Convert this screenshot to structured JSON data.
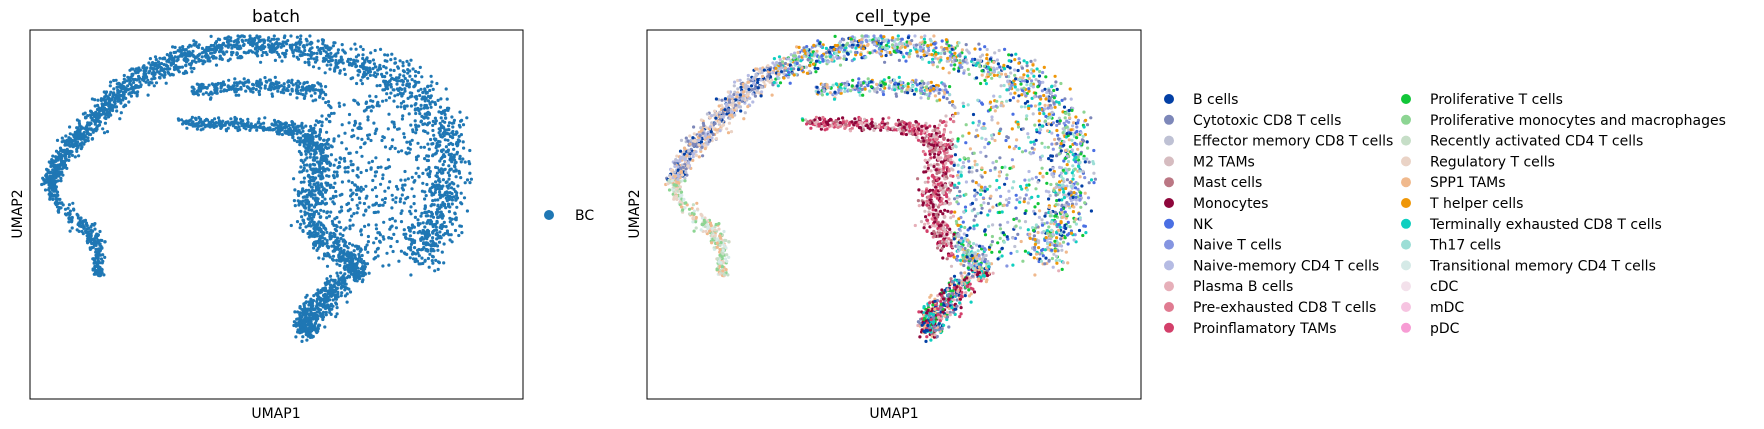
{
  "chart_data": [
    {
      "type": "scatter",
      "title": "batch",
      "xlabel": "UMAP1",
      "ylabel": "UMAP2",
      "grid": false,
      "ticks": "none",
      "legend_placement": "right",
      "series": [
        {
          "name": "BC",
          "color": "#1f77b4"
        }
      ]
    },
    {
      "type": "scatter",
      "title": "cell_type",
      "xlabel": "UMAP1",
      "ylabel": "UMAP2",
      "grid": false,
      "ticks": "none",
      "legend_placement": "right",
      "series": [
        {
          "name": "B cells",
          "color": "#023fa5"
        },
        {
          "name": "Cytotoxic CD8 T cells",
          "color": "#7d87b9"
        },
        {
          "name": "Effector memory CD8 T cells",
          "color": "#bec1d4"
        },
        {
          "name": "M2 TAMs",
          "color": "#d6bcc0"
        },
        {
          "name": "Mast cells",
          "color": "#bb7784"
        },
        {
          "name": "Monocytes",
          "color": "#8e063b"
        },
        {
          "name": "NK",
          "color": "#4a6fe3"
        },
        {
          "name": "Naive T cells",
          "color": "#8595e1"
        },
        {
          "name": "Naive-memory CD4 T cells",
          "color": "#b5bbe3"
        },
        {
          "name": "Plasma B cells",
          "color": "#e6afb9"
        },
        {
          "name": "Pre-exhausted CD8 T cells",
          "color": "#e07b91"
        },
        {
          "name": "Proinflamatory TAMs",
          "color": "#d33f6a"
        },
        {
          "name": "Proliferative T cells",
          "color": "#11c638"
        },
        {
          "name": "Proliferative monocytes and macrophages",
          "color": "#8dd593"
        },
        {
          "name": "Recently activated CD4 T cells",
          "color": "#c6dec7"
        },
        {
          "name": "Regulatory T cells",
          "color": "#ead3c6"
        },
        {
          "name": "SPP1 TAMs",
          "color": "#f0b98d"
        },
        {
          "name": "T helper cells",
          "color": "#ef9708"
        },
        {
          "name": "Terminally exhausted CD8 T cells",
          "color": "#0fcfc0"
        },
        {
          "name": "Th17 cells",
          "color": "#9cded6"
        },
        {
          "name": "Transitional memory CD4 T cells",
          "color": "#d5eae7"
        },
        {
          "name": "cDC",
          "color": "#f3e1eb"
        },
        {
          "name": "mDC",
          "color": "#f6c4e1"
        },
        {
          "name": "pDC",
          "color": "#f79cd4"
        }
      ]
    }
  ]
}
